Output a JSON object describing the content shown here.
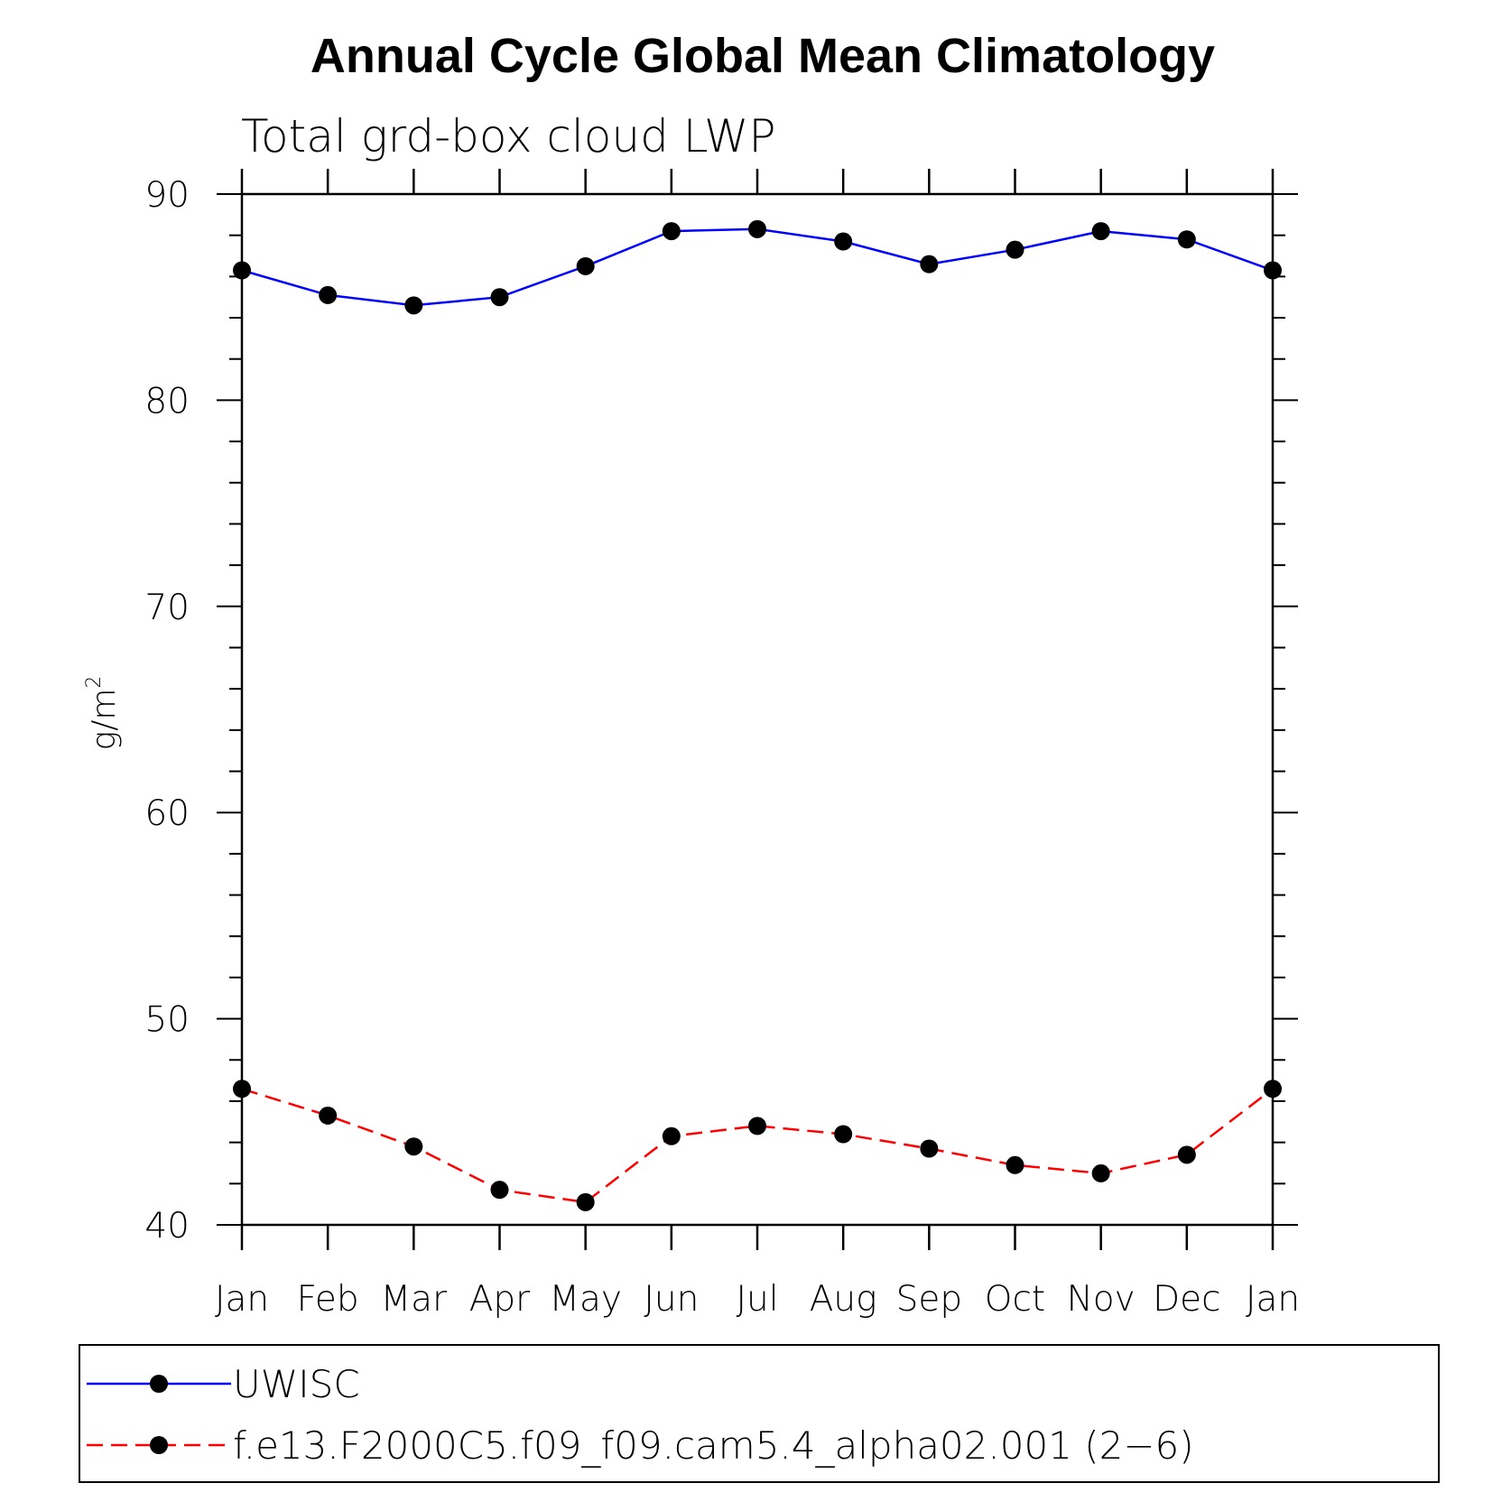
{
  "chart_data": {
    "type": "line",
    "title": "Annual Cycle Global Mean Climatology",
    "subtitle": "Total grd-box cloud LWP",
    "ylabel_base": "g/m",
    "ylabel_sup": "2",
    "xlabel": "",
    "categories": [
      "Jan",
      "Feb",
      "Mar",
      "Apr",
      "May",
      "Jun",
      "Jul",
      "Aug",
      "Sep",
      "Oct",
      "Nov",
      "Dec",
      "Jan"
    ],
    "ylim": [
      40,
      90
    ],
    "yticks": [
      "40",
      "50",
      "60",
      "70",
      "80",
      "90"
    ],
    "grid": false,
    "legend_position": "bottom",
    "series": [
      {
        "name": "UWISC",
        "color": "#0000ff",
        "dash": "solid",
        "values": [
          86.3,
          85.1,
          84.6,
          85.0,
          86.5,
          88.2,
          88.3,
          87.7,
          86.6,
          87.3,
          88.2,
          87.8,
          86.3
        ]
      },
      {
        "name": "f.e13.F2000C5.f09_f09.cam5.4_alpha02.001 (2−6)",
        "color": "#ff0000",
        "dash": "dashed",
        "values": [
          46.6,
          45.3,
          43.8,
          41.7,
          41.1,
          44.3,
          44.8,
          44.4,
          43.7,
          42.9,
          42.5,
          43.4,
          46.6
        ]
      }
    ],
    "marker_color": "#000000"
  }
}
